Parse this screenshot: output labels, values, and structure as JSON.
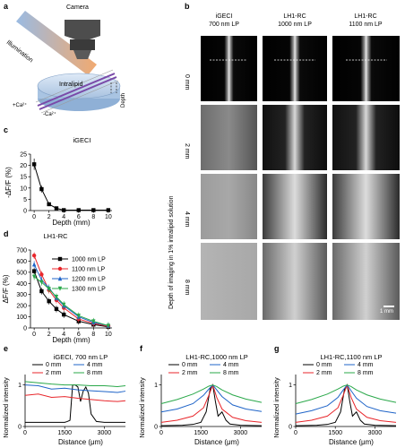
{
  "panels": {
    "a": {
      "letter": "a",
      "camera_label": "Camera",
      "illumination_label": "Illumination",
      "intralipid_label": "Intralipid",
      "ca_plus_label": "+Ca²⁺",
      "ca_minus_label": "-Ca²⁺",
      "depth_label": "Depth"
    },
    "b": {
      "letter": "b",
      "col1_line1": "iGECI",
      "col1_line2": "700 nm LP",
      "col2_line1": "LH1-RC",
      "col2_line2": "1000 nm LP",
      "col3_line1": "LH1-RC",
      "col3_line2": "1100 nm LP",
      "row_labels": [
        "0 mm",
        "2 mm",
        "4 mm",
        "8 mm"
      ],
      "side_label": "Depth of imaging in 1% intralipid solution",
      "scalebar_label": "1 mm"
    },
    "c": {
      "letter": "c"
    },
    "d": {
      "letter": "d"
    },
    "e": {
      "letter": "e"
    },
    "f": {
      "letter": "f"
    },
    "g": {
      "letter": "g"
    }
  },
  "colors": {
    "black": "#000000",
    "red": "#e8262b",
    "blue": "#1f64c8",
    "green": "#2aa84a",
    "gray": "#555555",
    "orange": "#e8862a"
  },
  "chart_data": [
    {
      "id": "c",
      "type": "line",
      "title": "iGECI",
      "xlabel": "Depth (mm)",
      "ylabel": "-ΔF/F (%)",
      "xlim": [
        -0.5,
        10.5
      ],
      "ylim": [
        0,
        25
      ],
      "xticks": [
        0,
        2,
        4,
        6,
        8,
        10
      ],
      "yticks": [
        0,
        5,
        10,
        15,
        20,
        25
      ],
      "series": [
        {
          "x": [
            0,
            1,
            2,
            3,
            4,
            6,
            8,
            10
          ],
          "y": [
            20.5,
            9.5,
            2.8,
            1.0,
            0.2,
            0.2,
            0.2,
            0.2
          ],
          "err": [
            2.5,
            1.5,
            0.8,
            0.3,
            0.2,
            0.2,
            0.2,
            0.2
          ]
        }
      ]
    },
    {
      "id": "d",
      "type": "line",
      "title": "LH1-RC",
      "xlabel": "Depth (mm)",
      "ylabel": "ΔF/F (%)",
      "xlim": [
        -0.5,
        10.5
      ],
      "ylim": [
        0,
        700
      ],
      "xticks": [
        0,
        2,
        4,
        6,
        8,
        10
      ],
      "yticks": [
        0,
        100,
        200,
        300,
        400,
        500,
        600,
        700
      ],
      "x": [
        0,
        1,
        2,
        3,
        4,
        6,
        8,
        10
      ],
      "series": [
        {
          "name": "1000 nm LP",
          "color": "#000000",
          "marker": "square",
          "values": [
            510,
            330,
            240,
            170,
            120,
            60,
            30,
            10
          ]
        },
        {
          "name": "1100 nm LP",
          "color": "#e8262b",
          "marker": "circle",
          "values": [
            650,
            480,
            340,
            250,
            180,
            80,
            40,
            15
          ]
        },
        {
          "name": "1200 nm LP",
          "color": "#1f64c8",
          "marker": "triangle",
          "values": [
            570,
            430,
            360,
            270,
            200,
            100,
            50,
            20
          ]
        },
        {
          "name": "1300 nm LP",
          "color": "#2aa84a",
          "marker": "triangle-down",
          "values": [
            460,
            410,
            350,
            280,
            210,
            110,
            60,
            20
          ]
        }
      ]
    },
    {
      "id": "e",
      "type": "line",
      "title": "iGECI, 700 nm LP",
      "xlabel": "Distance (μm)",
      "ylabel": "Normalized intensity",
      "xlim": [
        0,
        3800
      ],
      "ylim": [
        0,
        1.25
      ],
      "xticks": [
        0,
        1500,
        3000
      ],
      "yticks": [
        0,
        1
      ],
      "legend": [
        "0 mm",
        "4 mm",
        "2 mm",
        "8 mm"
      ],
      "series": [
        {
          "name": "0 mm",
          "color": "#000000",
          "x": [
            0,
            300,
            600,
            900,
            1200,
            1500,
            1600,
            1700,
            1800,
            1900,
            2000,
            2100,
            2200,
            2300,
            2400,
            2500,
            2700,
            3000,
            3400,
            3800
          ],
          "values": [
            0.1,
            0.1,
            0.1,
            0.1,
            0.1,
            0.1,
            0.12,
            0.15,
            1.0,
            1.0,
            0.95,
            0.6,
            0.85,
            0.95,
            0.8,
            0.3,
            0.12,
            0.1,
            0.1,
            0.1
          ]
        },
        {
          "name": "2 mm",
          "color": "#e8262b",
          "x": [
            0,
            500,
            1000,
            1500,
            2000,
            2500,
            3000,
            3500,
            3800
          ],
          "values": [
            0.75,
            0.78,
            0.7,
            0.72,
            0.68,
            0.65,
            0.62,
            0.6,
            0.62
          ]
        },
        {
          "name": "4 mm",
          "color": "#1f64c8",
          "x": [
            0,
            500,
            1000,
            1500,
            2000,
            2500,
            3000,
            3500,
            3800
          ],
          "values": [
            1.0,
            0.98,
            0.9,
            0.92,
            0.88,
            0.86,
            0.84,
            0.82,
            0.85
          ]
        },
        {
          "name": "8 mm",
          "color": "#2aa84a",
          "x": [
            0,
            500,
            1000,
            1500,
            2000,
            2500,
            3000,
            3500,
            3800
          ],
          "values": [
            1.08,
            1.05,
            1.02,
            1.0,
            1.0,
            0.98,
            0.98,
            0.96,
            0.98
          ]
        }
      ]
    },
    {
      "id": "f",
      "type": "line",
      "title": "LH1-RC,1000 nm LP",
      "xlabel": "Distance (μm)",
      "ylabel": "Normalized intensity",
      "xlim": [
        0,
        3800
      ],
      "ylim": [
        0,
        1.25
      ],
      "xticks": [
        0,
        1500,
        3000
      ],
      "yticks": [
        0,
        1
      ],
      "legend": [
        "0 mm",
        "4 mm",
        "2 mm",
        "8 mm"
      ],
      "series": [
        {
          "name": "0 mm",
          "color": "#000000",
          "x": [
            0,
            800,
            1200,
            1500,
            1700,
            1850,
            1950,
            2050,
            2150,
            2300,
            2450,
            2600,
            3000,
            3800
          ],
          "values": [
            0.02,
            0.03,
            0.05,
            0.1,
            0.35,
            0.9,
            1.0,
            0.6,
            0.25,
            0.35,
            0.15,
            0.06,
            0.03,
            0.02
          ]
        },
        {
          "name": "2 mm",
          "color": "#e8262b",
          "x": [
            0,
            600,
            1200,
            1600,
            1800,
            1950,
            2100,
            2300,
            2700,
            3200,
            3800
          ],
          "values": [
            0.1,
            0.15,
            0.25,
            0.45,
            0.75,
            1.0,
            0.7,
            0.42,
            0.22,
            0.14,
            0.1
          ]
        },
        {
          "name": "4 mm",
          "color": "#1f64c8",
          "x": [
            0,
            600,
            1200,
            1600,
            1800,
            1950,
            2100,
            2300,
            2700,
            3200,
            3800
          ],
          "values": [
            0.35,
            0.42,
            0.55,
            0.75,
            0.9,
            1.0,
            0.88,
            0.72,
            0.52,
            0.42,
            0.36
          ]
        },
        {
          "name": "8 mm",
          "color": "#2aa84a",
          "x": [
            0,
            600,
            1200,
            1600,
            1800,
            1950,
            2100,
            2300,
            2700,
            3200,
            3800
          ],
          "values": [
            0.55,
            0.65,
            0.78,
            0.9,
            0.97,
            1.0,
            0.96,
            0.88,
            0.76,
            0.66,
            0.58
          ]
        }
      ]
    },
    {
      "id": "g",
      "type": "line",
      "title": "LH1-RC,1100 nm LP",
      "xlabel": "Distance (μm)",
      "ylabel": "Normalized intensity",
      "xlim": [
        0,
        3800
      ],
      "ylim": [
        0,
        1.25
      ],
      "xticks": [
        0,
        1500,
        3000
      ],
      "yticks": [
        0,
        1
      ],
      "legend": [
        "0 mm",
        "4 mm",
        "2 mm",
        "8 mm"
      ],
      "series": [
        {
          "name": "0 mm",
          "color": "#000000",
          "x": [
            0,
            800,
            1200,
            1500,
            1700,
            1850,
            1950,
            2050,
            2150,
            2300,
            2450,
            2600,
            3000,
            3800
          ],
          "values": [
            0.02,
            0.03,
            0.05,
            0.1,
            0.35,
            0.9,
            1.0,
            0.6,
            0.25,
            0.35,
            0.15,
            0.06,
            0.03,
            0.02
          ]
        },
        {
          "name": "2 mm",
          "color": "#e8262b",
          "x": [
            0,
            600,
            1200,
            1600,
            1800,
            1950,
            2100,
            2300,
            2700,
            3200,
            3800
          ],
          "values": [
            0.1,
            0.15,
            0.25,
            0.45,
            0.75,
            1.0,
            0.7,
            0.42,
            0.22,
            0.14,
            0.1
          ]
        },
        {
          "name": "4 mm",
          "color": "#1f64c8",
          "x": [
            0,
            600,
            1200,
            1600,
            1800,
            1950,
            2100,
            2300,
            2700,
            3200,
            3800
          ],
          "values": [
            0.3,
            0.38,
            0.5,
            0.7,
            0.88,
            1.0,
            0.86,
            0.68,
            0.48,
            0.38,
            0.32
          ]
        },
        {
          "name": "8 mm",
          "color": "#2aa84a",
          "x": [
            0,
            600,
            1200,
            1600,
            1800,
            1950,
            2100,
            2300,
            2700,
            3200,
            3800
          ],
          "values": [
            0.55,
            0.65,
            0.78,
            0.9,
            0.97,
            1.0,
            0.96,
            0.88,
            0.76,
            0.66,
            0.58
          ]
        }
      ]
    }
  ]
}
